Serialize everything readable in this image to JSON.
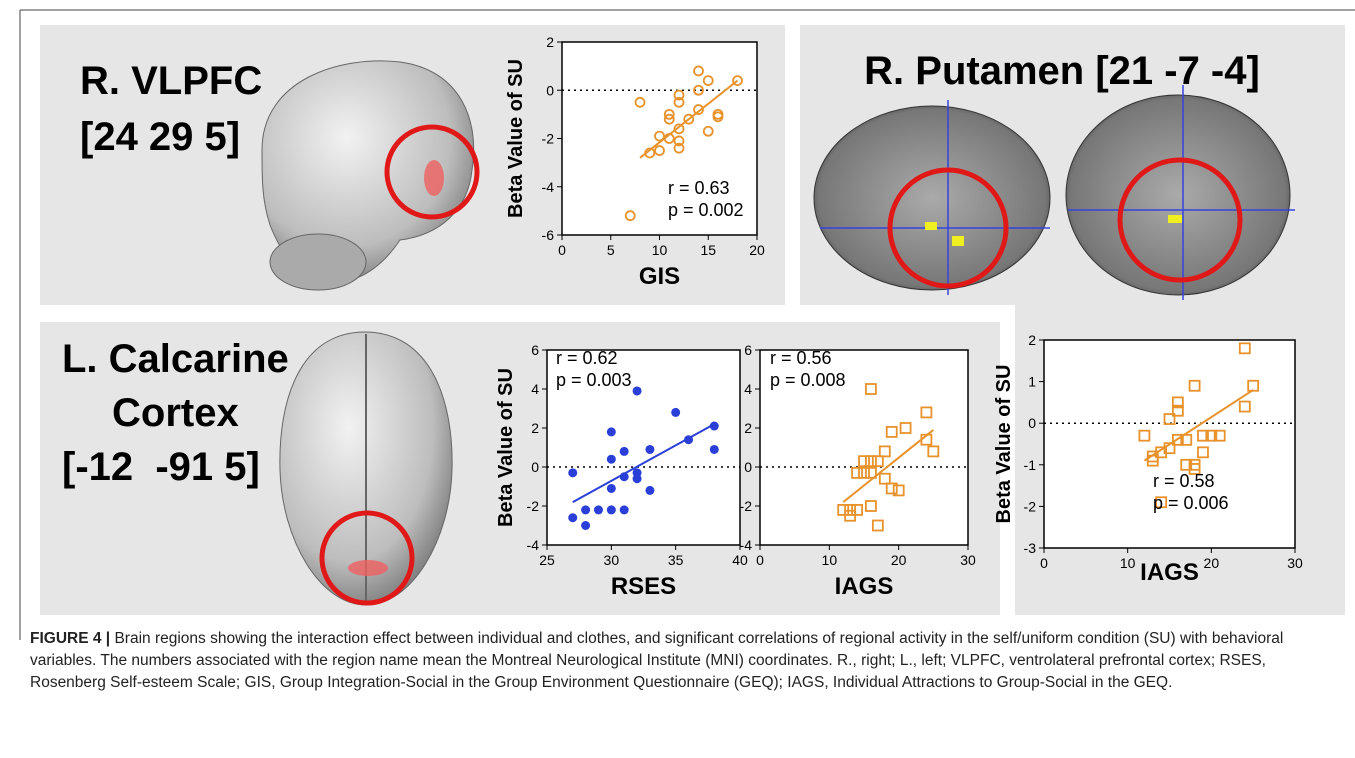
{
  "panel_labels": [
    [
      "R. VLPFC",
      "[24 29 5]"
    ],
    [
      "R. Putamen [21 -7 -4]"
    ],
    [
      "L. Calcarine",
      "Cortex",
      "[-12  -91 5]"
    ]
  ],
  "chart_data": [
    {
      "type": "scatter",
      "x_label": "GIS",
      "y_label": "Beta Value of SU",
      "marker": "circle",
      "color": "#e8922b",
      "x": [
        7,
        8,
        9,
        10,
        10,
        11,
        11,
        11,
        12,
        12,
        12,
        12,
        12,
        13,
        14,
        14,
        14,
        15,
        15,
        16,
        16,
        18
      ],
      "y": [
        -5.2,
        -0.5,
        -2.6,
        -2.5,
        -1.9,
        -1.2,
        -1.0,
        -2.0,
        -2.1,
        -2.4,
        -1.6,
        -0.5,
        -0.2,
        -1.2,
        0.8,
        -0.8,
        0.0,
        0.4,
        -1.7,
        -1.0,
        -1.1,
        0.4
      ],
      "fit": {
        "x": [
          8,
          18
        ],
        "y": [
          -2.8,
          0.4
        ]
      },
      "reference_y": 0,
      "annotations": [
        "r = 0.63",
        "p = 0.002"
      ],
      "xlim": [
        0,
        20
      ],
      "ylim": [
        -6,
        2
      ],
      "xticks": [
        0,
        5,
        10,
        15,
        20
      ],
      "yticks": [
        -6,
        -4,
        -2,
        0,
        2
      ]
    },
    {
      "type": "scatter",
      "x_label": "RSES",
      "y_label": "Beta Value of SU",
      "marker": "dot",
      "color": "#2a3fd8",
      "x": [
        27,
        27,
        28,
        28,
        29,
        30,
        30,
        30,
        30,
        31,
        31,
        31,
        32,
        32,
        32,
        33,
        33,
        35,
        36,
        38,
        38
      ],
      "y": [
        -0.3,
        -2.6,
        -2.2,
        -3.0,
        -2.2,
        -2.2,
        -1.1,
        0.4,
        1.8,
        -2.2,
        -0.5,
        0.8,
        -0.3,
        -0.6,
        3.9,
        -1.2,
        0.9,
        2.8,
        1.4,
        2.1,
        0.9
      ],
      "fit": {
        "x": [
          27,
          38
        ],
        "y": [
          -1.8,
          2.2
        ]
      },
      "reference_y": 0,
      "annotations": [
        "r = 0.62",
        "p = 0.003"
      ],
      "xlim": [
        25,
        40
      ],
      "ylim": [
        -4,
        6
      ],
      "xticks": [
        25,
        30,
        35,
        40
      ],
      "yticks": [
        -4,
        -2,
        0,
        2,
        4,
        6
      ]
    },
    {
      "type": "scatter",
      "x_label": "IAGS",
      "marker": "square",
      "color": "#e8922b",
      "x": [
        12,
        13,
        13,
        14,
        14,
        15,
        15,
        16,
        16,
        16,
        16,
        17,
        17,
        18,
        18,
        19,
        19,
        20,
        21,
        24,
        24,
        25
      ],
      "y": [
        -2.2,
        -2.2,
        -2.5,
        -2.2,
        -0.3,
        -0.3,
        0.3,
        -0.3,
        -2.0,
        4.0,
        0.3,
        0.3,
        -3.0,
        0.8,
        -0.6,
        -1.1,
        1.8,
        -1.2,
        2.0,
        2.8,
        1.4,
        0.8
      ],
      "fit": {
        "x": [
          12,
          25
        ],
        "y": [
          -1.8,
          1.9
        ]
      },
      "reference_y": 0,
      "annotations": [
        "r = 0.56",
        "p = 0.008"
      ],
      "xlim": [
        0,
        30
      ],
      "ylim": [
        -4,
        6
      ],
      "xticks": [
        0,
        10,
        20,
        30
      ],
      "yticks": [
        -4,
        -2,
        0,
        2,
        4,
        6
      ]
    },
    {
      "type": "scatter",
      "x_label": "IAGS",
      "y_label": "Beta Value of SU",
      "marker": "square",
      "color": "#e8922b",
      "x": [
        12,
        13,
        13,
        14,
        14,
        15,
        15,
        16,
        16,
        16,
        17,
        17,
        18,
        18,
        18,
        19,
        19,
        20,
        21,
        24,
        24,
        25
      ],
      "y": [
        -0.3,
        -0.8,
        -0.9,
        -0.7,
        -1.9,
        0.1,
        -0.6,
        0.5,
        0.3,
        -0.4,
        -0.4,
        -1.0,
        0.9,
        -1.0,
        -1.1,
        -0.3,
        -0.7,
        -0.3,
        -0.3,
        1.8,
        0.4,
        0.9
      ],
      "fit": {
        "x": [
          12,
          25
        ],
        "y": [
          -0.9,
          0.8
        ]
      },
      "reference_y": 0,
      "annotations": [
        "r = 0.58",
        "p = 0.006"
      ],
      "xlim": [
        0,
        30
      ],
      "ylim": [
        -3,
        2
      ],
      "xticks": [
        0,
        10,
        20,
        30
      ],
      "yticks": [
        -3,
        -2,
        -1,
        0,
        1,
        2
      ]
    }
  ],
  "caption": {
    "label": "FIGURE 4 |",
    "text": "Brain regions showing the interaction effect between individual and clothes, and significant correlations of regional activity in the self/uniform condition (SU) with behavioral variables. The numbers associated with the region name mean the Montreal Neurological Institute (MNI) coordinates. R., right; L., left; VLPFC, ventrolateral prefrontal cortex; RSES, Rosenberg Self-esteem Scale; GIS, Group Integration-Social in the Group Environment Questionnaire (GEQ); IAGS, Individual Attractions to Group-Social in the GEQ."
  }
}
